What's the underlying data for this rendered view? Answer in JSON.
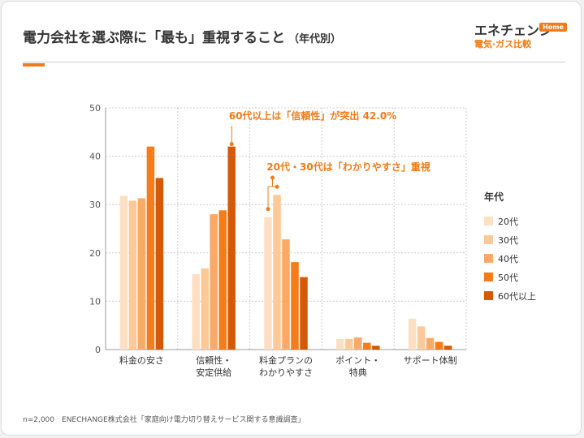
{
  "header": {
    "title": "電力会社を選ぶ際に「最も」重視すること",
    "subtitle": "（年代別）"
  },
  "logo": {
    "brand": "エネチェンジ",
    "badge": "Home",
    "tagline": "電気·ガス比較"
  },
  "colors": {
    "accent": "#f07b18",
    "series": [
      "#fde0c4",
      "#fcc998",
      "#fba966",
      "#f57c17",
      "#d55a08"
    ],
    "annotation": "#f07b18"
  },
  "footer": {
    "source": "n=2,000　ENECHANGE株式会社「家庭向け電力切り替えサービス関する意識調査」"
  },
  "chart_data": {
    "type": "bar",
    "categories": [
      [
        "料金の安さ"
      ],
      [
        "信頼性・",
        "安定供給"
      ],
      [
        "料金プランの",
        "わかりやすさ"
      ],
      [
        "ポイント・",
        "特典"
      ],
      [
        "サポート体制"
      ]
    ],
    "series": [
      {
        "name": "20代",
        "values": [
          31.8,
          15.6,
          27.4,
          2.2,
          6.4
        ]
      },
      {
        "name": "30代",
        "values": [
          30.8,
          16.8,
          32.0,
          2.2,
          4.8
        ]
      },
      {
        "name": "40代",
        "values": [
          31.3,
          28.0,
          22.8,
          2.5,
          2.4
        ]
      },
      {
        "name": "50代",
        "values": [
          42.0,
          28.8,
          18.1,
          1.4,
          1.6
        ]
      },
      {
        "name": "60代以上",
        "values": [
          35.5,
          42.0,
          15.0,
          0.8,
          0.8
        ]
      }
    ],
    "ylim": [
      0,
      50
    ],
    "yticks": [
      0,
      10,
      20,
      30,
      40,
      50
    ],
    "grid": true,
    "legend": {
      "title": "年代",
      "position": "right"
    },
    "annotations": [
      {
        "text": "60代以上は「信頼性」が突出 42.0%",
        "category_index": 1,
        "series_index": 4
      },
      {
        "text": "20代・30代は「わかりやすさ」重視",
        "category_index": 2,
        "series_index": [
          0,
          1
        ]
      }
    ]
  }
}
